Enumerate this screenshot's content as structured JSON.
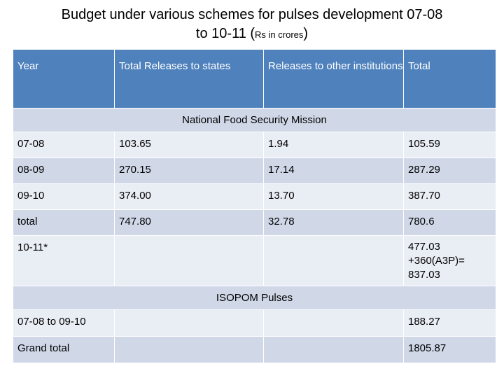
{
  "title": {
    "line1": "Budget  under various schemes for pulses development 07-08",
    "line2_start": "to 10-11 (",
    "line2_small": "Rs in crores",
    "line2_end": ")"
  },
  "table": {
    "headers": [
      "Year",
      "Total Releases to states",
      "Releases to other institutions",
      "Total"
    ],
    "section1_label": "National Food Security Mission",
    "section1_rows": [
      [
        "07-08",
        "103.65",
        "1.94",
        "105.59"
      ],
      [
        "08-09",
        "270.15",
        "17.14",
        "287.29"
      ],
      [
        "09-10",
        "374.00",
        "13.70",
        "387.70"
      ],
      [
        "total",
        "747.80",
        "32.78",
        "780.6"
      ]
    ],
    "row_1011": {
      "year": "10-11*",
      "total_line1": "477.03",
      "total_line2": "+360(A3P)=",
      "total_line3": "837.03"
    },
    "section2_label": "ISOPOM Pulses",
    "section2_rows": [
      [
        "07-08 to 09-10",
        "",
        "",
        "188.27"
      ],
      [
        "Grand total",
        "",
        "",
        "1805.87"
      ]
    ]
  }
}
